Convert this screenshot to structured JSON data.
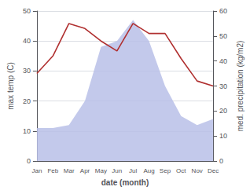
{
  "chart_data": {
    "type": "line",
    "categories": [
      "Jan",
      "Feb",
      "Mar",
      "Apr",
      "May",
      "Jun",
      "Jul",
      "Aug",
      "Sep",
      "Oct",
      "Nov",
      "Dec"
    ],
    "xlabel": "date (month)",
    "ylabel": "max temp (C)",
    "y2label": "med. precipitation (kg/m2)",
    "series": [
      {
        "type": "area",
        "color": "#b8c0e8",
        "values": [
          11,
          11,
          12,
          20,
          38,
          40,
          47,
          40,
          25,
          15,
          12,
          14
        ]
      },
      {
        "type": "line",
        "color": "#b03030",
        "axis": "y2",
        "values": [
          35,
          42,
          55,
          53,
          48,
          44,
          55,
          51,
          51,
          41,
          32,
          30
        ]
      }
    ],
    "ylim": [
      0,
      50
    ],
    "yticks": [
      0,
      10,
      20,
      30,
      40,
      50
    ],
    "y2lim": [
      0,
      60
    ],
    "y2ticks": [
      0,
      10,
      20,
      30,
      40,
      50,
      60
    ],
    "grid": true
  }
}
